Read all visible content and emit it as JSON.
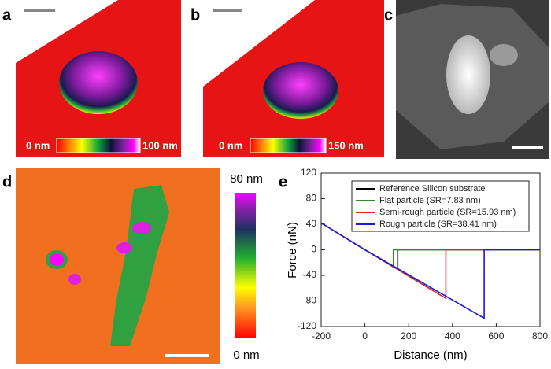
{
  "panels": {
    "a": {
      "label": "a",
      "scale_min": "0 nm",
      "scale_max": "100 nm"
    },
    "b": {
      "label": "b",
      "scale_min": "0 nm",
      "scale_max": "150 nm"
    },
    "c": {
      "label": "c"
    },
    "d": {
      "label": "d",
      "scale_max": "80 nm",
      "scale_min": "0 nm"
    },
    "e": {
      "label": "e"
    }
  },
  "chart_data": {
    "type": "line",
    "xlabel": "Distance (nm)",
    "ylabel": "Force (nN)",
    "xlim": [
      -200,
      800
    ],
    "xticks": [
      -200,
      0,
      200,
      400,
      600,
      800
    ],
    "ylim": [
      -120,
      120
    ],
    "yticks": [
      -120,
      -80,
      -40,
      0,
      40,
      80,
      120
    ],
    "legend": "upper right",
    "series": [
      {
        "name": "Reference Silicon substrate",
        "color": "#000000",
        "x": [
          -200,
          0,
          150,
          150,
          800
        ],
        "values": [
          42,
          0,
          -30,
          0,
          0
        ]
      },
      {
        "name": "Flat particle (SR=7.83 nm)",
        "color": "#2e8b2e",
        "x": [
          -200,
          0,
          130,
          130,
          800
        ],
        "values": [
          42,
          0,
          -27,
          0,
          0
        ]
      },
      {
        "name": "Semi-rough particle (SR=15.93 nm)",
        "color": "#e8201f",
        "x": [
          -200,
          0,
          370,
          370,
          800
        ],
        "values": [
          42,
          0,
          -76,
          0,
          0
        ]
      },
      {
        "name": "Rough particle (SR=38.41 nm)",
        "color": "#1a1adb",
        "x": [
          -200,
          0,
          545,
          545,
          800
        ],
        "values": [
          42,
          0,
          -107,
          0,
          0
        ]
      }
    ]
  }
}
